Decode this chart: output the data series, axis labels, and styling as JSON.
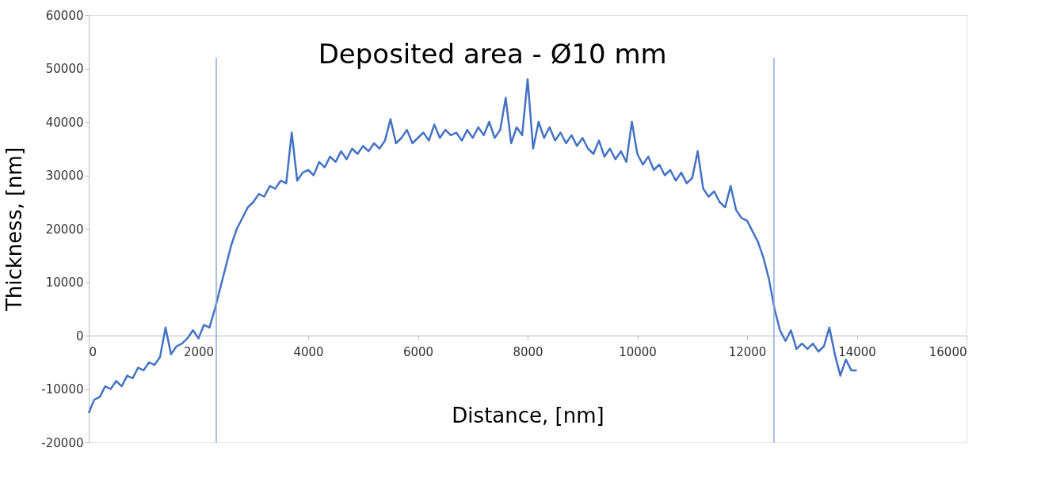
{
  "chart_data": {
    "type": "line",
    "title": "Deposited area - Ø10 mm",
    "xlabel": "Distance, [nm]",
    "ylabel": "Thickness, [nm]",
    "x": [
      0,
      100,
      200,
      300,
      400,
      500,
      600,
      700,
      800,
      900,
      1000,
      1100,
      1200,
      1300,
      1400,
      1500,
      1600,
      1700,
      1800,
      1900,
      2000,
      2100,
      2200,
      2300,
      2400,
      2500,
      2600,
      2700,
      2800,
      2900,
      3000,
      3100,
      3200,
      3300,
      3400,
      3500,
      3600,
      3700,
      3800,
      3900,
      4000,
      4100,
      4200,
      4300,
      4400,
      4500,
      4600,
      4700,
      4800,
      4900,
      5000,
      5100,
      5200,
      5300,
      5400,
      5500,
      5600,
      5700,
      5800,
      5900,
      6000,
      6100,
      6200,
      6300,
      6400,
      6500,
      6600,
      6700,
      6800,
      6900,
      7000,
      7100,
      7200,
      7300,
      7400,
      7500,
      7600,
      7700,
      7800,
      7900,
      8000,
      8100,
      8200,
      8300,
      8400,
      8500,
      8600,
      8700,
      8800,
      8900,
      9000,
      9100,
      9200,
      9300,
      9400,
      9500,
      9600,
      9700,
      9800,
      9900,
      10000,
      10100,
      10200,
      10300,
      10400,
      10500,
      10600,
      10700,
      10800,
      10900,
      11000,
      11100,
      11200,
      11300,
      11400,
      11500,
      11600,
      11700,
      11800,
      11900,
      12000,
      12100,
      12200,
      12300,
      12400,
      12500,
      12600,
      12700,
      12800,
      12900,
      13000,
      13100,
      13200,
      13300,
      13400,
      13500,
      13600,
      13700,
      13800,
      13900,
      14000
    ],
    "series": [
      {
        "color": "#4472c4",
        "values": [
          -14500,
          -12000,
          -11500,
          -9500,
          -10000,
          -8500,
          -9500,
          -7500,
          -8000,
          -6000,
          -6500,
          -5000,
          -5500,
          -4000,
          1500,
          -3500,
          -2000,
          -1500,
          -500,
          1000,
          -500,
          2000,
          1500,
          5000,
          9000,
          13000,
          17000,
          20000,
          22000,
          24000,
          25000,
          26500,
          26000,
          28000,
          27500,
          29000,
          28500,
          38000,
          29000,
          30500,
          31000,
          30000,
          32500,
          31500,
          33500,
          32500,
          34500,
          33000,
          35000,
          34000,
          35500,
          34500,
          36000,
          35000,
          36500,
          40500,
          36000,
          37000,
          38500,
          36000,
          37000,
          38000,
          36500,
          39500,
          37000,
          38500,
          37500,
          38000,
          36500,
          38500,
          37000,
          39000,
          37500,
          40000,
          37000,
          38500,
          44500,
          36000,
          39000,
          37500,
          48000,
          35000,
          40000,
          37000,
          39000,
          36500,
          38000,
          36000,
          37500,
          35500,
          37000,
          35000,
          34000,
          36500,
          33500,
          35000,
          33000,
          34500,
          32500,
          40000,
          34000,
          32000,
          33500,
          31000,
          32000,
          30000,
          31000,
          29000,
          30500,
          28500,
          29500,
          34500,
          27500,
          26000,
          27000,
          25000,
          24000,
          28000,
          23500,
          22000,
          21500,
          19500,
          17500,
          14500,
          10500,
          5000,
          1000,
          -1000,
          1000,
          -2500,
          -1500,
          -2500,
          -1500,
          -3000,
          -2000,
          1500,
          -3500,
          -7500,
          -4500,
          -6500,
          -6500
        ]
      }
    ],
    "xlim": [
      0,
      16000
    ],
    "xticks": [
      0,
      2000,
      4000,
      6000,
      8000,
      10000,
      12000,
      14000,
      16000
    ],
    "ylim": [
      -20000,
      60000
    ],
    "yticks": [
      -20000,
      -10000,
      0,
      10000,
      20000,
      30000,
      40000,
      50000,
      60000
    ],
    "ref_lines": [
      {
        "axis": "x",
        "value": 2325,
        "color": "#8eaadb"
      },
      {
        "axis": "x",
        "value": 12490,
        "color": "#8eaadb"
      }
    ],
    "grid": false,
    "marker": "none",
    "line_style": "solid"
  }
}
